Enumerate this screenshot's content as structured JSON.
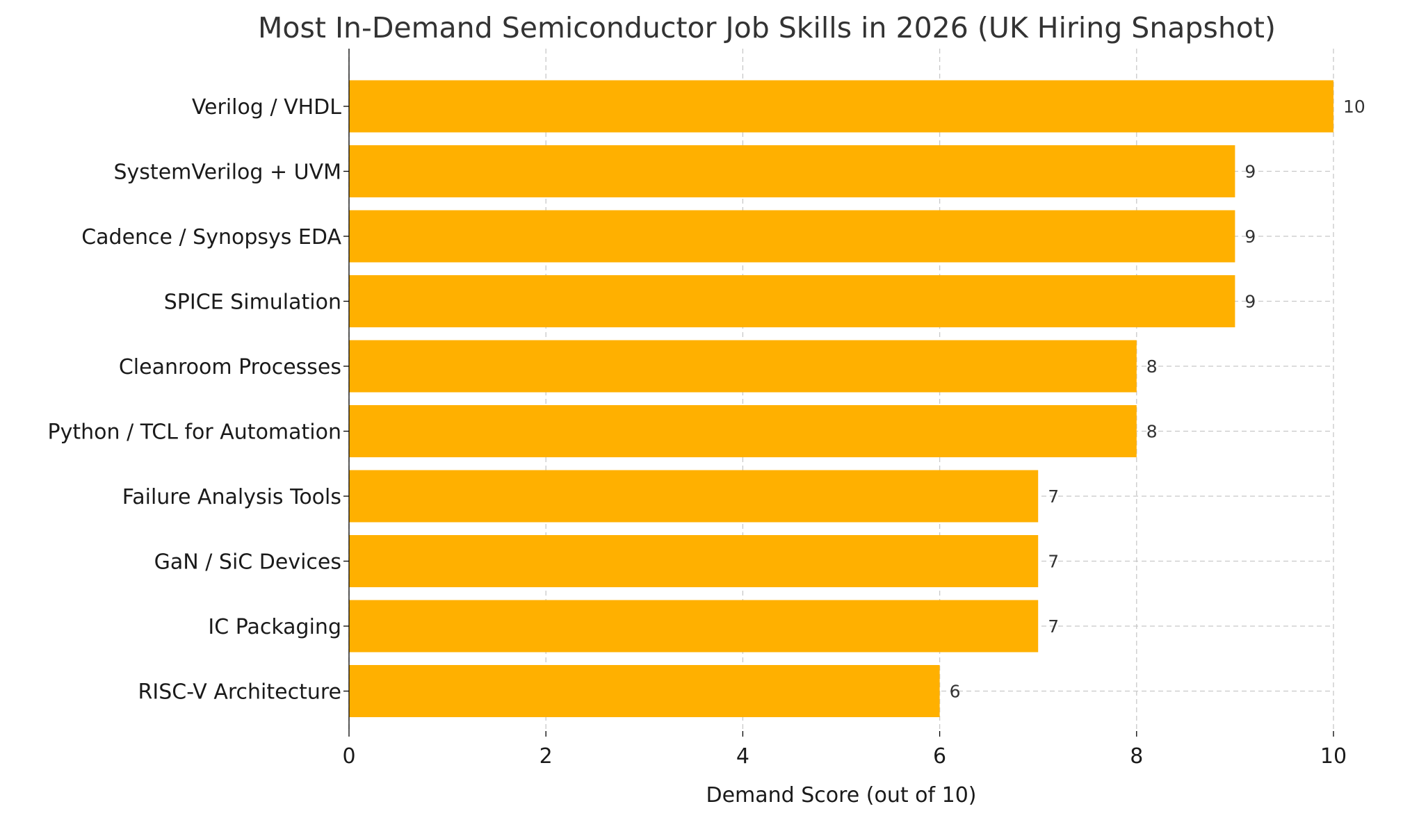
{
  "chart_data": {
    "type": "bar",
    "orientation": "horizontal",
    "title": "Most In-Demand Semiconductor Job Skills in 2026 (UK Hiring Snapshot)",
    "xlabel": "Demand Score (out of 10)",
    "ylabel": "",
    "xlim": [
      0,
      10
    ],
    "xticks": [
      0,
      2,
      4,
      6,
      8,
      10
    ],
    "categories": [
      "Verilog / VHDL",
      "SystemVerilog + UVM",
      "Cadence / Synopsys EDA",
      "SPICE Simulation",
      "Cleanroom Processes",
      "Python / TCL for Automation",
      "Failure Analysis Tools",
      "GaN / SiC Devices",
      "IC Packaging",
      "RISC-V Architecture"
    ],
    "values": [
      10,
      9,
      9,
      9,
      8,
      8,
      7,
      7,
      7,
      6
    ],
    "bar_color": "#FFB000",
    "grid": true,
    "data_labels": true
  }
}
